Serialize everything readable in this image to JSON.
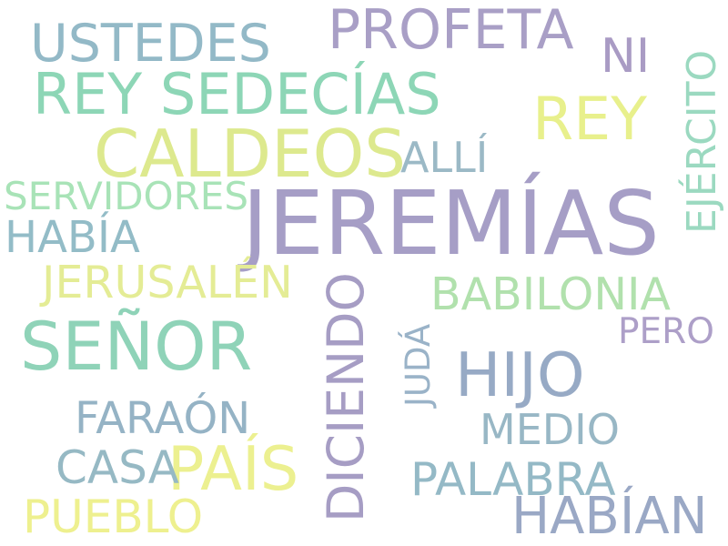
{
  "words": [
    {
      "id": "jeremias",
      "text": "JEREMÍAS",
      "color": "#a69ec6"
    },
    {
      "id": "caldeos",
      "text": "CALDEOS",
      "color": "#dde98e"
    },
    {
      "id": "rey-sedecias",
      "text": "REY SEDECÍAS",
      "color": "#8dd6b6"
    },
    {
      "id": "senor",
      "text": "SEÑOR",
      "color": "#8fd3b8"
    },
    {
      "id": "profeta",
      "text": "PROFETA",
      "color": "#a99fc6"
    },
    {
      "id": "ustedes",
      "text": "USTEDES",
      "color": "#93b9c7"
    },
    {
      "id": "rey",
      "text": "REY",
      "color": "#e8f08c"
    },
    {
      "id": "hijo",
      "text": "HIJO",
      "color": "#97aac5"
    },
    {
      "id": "pais",
      "text": "PAÍS",
      "color": "#ecf090"
    },
    {
      "id": "diciendo",
      "text": "DICIENDO",
      "color": "#a69dc4"
    },
    {
      "id": "ejercito",
      "text": "EJÉRCITO",
      "color": "#9bd9c0"
    },
    {
      "id": "ni",
      "text": "NI",
      "color": "#a99bc4"
    },
    {
      "id": "alli",
      "text": "ALLÍ",
      "color": "#9bb9c6"
    },
    {
      "id": "servidores",
      "text": "SERVIDORES",
      "color": "#a8e3b7"
    },
    {
      "id": "habia",
      "text": "HABÍA",
      "color": "#93bcc7"
    },
    {
      "id": "jerusalen",
      "text": "JERUSALÉN",
      "color": "#e4ec95"
    },
    {
      "id": "babilonia",
      "text": "BABILONIA",
      "color": "#b1e1ad"
    },
    {
      "id": "pero",
      "text": "PERO",
      "color": "#ad9fc8"
    },
    {
      "id": "juda",
      "text": "JUDÁ",
      "color": "#9ab3c8"
    },
    {
      "id": "medio",
      "text": "MEDIO",
      "color": "#98b7c5"
    },
    {
      "id": "faraon",
      "text": "FARAÓN",
      "color": "#95b3c5"
    },
    {
      "id": "casa",
      "text": "CASA",
      "color": "#96b9c4"
    },
    {
      "id": "palabra",
      "text": "PALABRA",
      "color": "#94b9c6"
    },
    {
      "id": "pueblo",
      "text": "PUEBLO",
      "color": "#eef08f"
    },
    {
      "id": "habian",
      "text": "HABÍAN",
      "color": "#9aa8c5"
    }
  ]
}
